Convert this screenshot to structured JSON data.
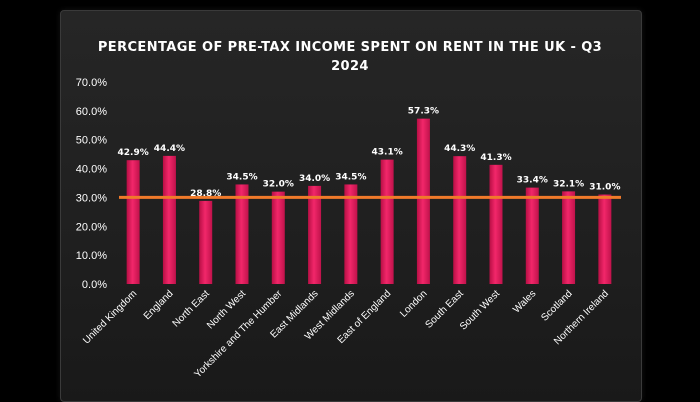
{
  "chart_data": {
    "type": "bar",
    "title": "PERCENTAGE OF PRE-TAX INCOME SPENT ON RENT IN THE UK - Q3 2024",
    "categories": [
      "United Kingdom",
      "England",
      "North East",
      "North West",
      "Yorkshire and The Humber",
      "East Midlands",
      "West Midlands",
      "East of England",
      "London",
      "South East",
      "South West",
      "Wales",
      "Scotland",
      "Northern Ireland"
    ],
    "values": [
      42.9,
      44.4,
      28.8,
      34.5,
      32.0,
      34.0,
      34.5,
      43.1,
      57.3,
      44.3,
      41.3,
      33.4,
      32.1,
      31.0
    ],
    "data_labels": [
      "42.9%",
      "44.4%",
      "28.8%",
      "34.5%",
      "32.0%",
      "34.0%",
      "34.5%",
      "43.1%",
      "57.3%",
      "44.3%",
      "41.3%",
      "33.4%",
      "32.1%",
      "31.0%"
    ],
    "y_ticks": [
      "0.0%",
      "10.0%",
      "20.0%",
      "30.0%",
      "40.0%",
      "50.0%",
      "60.0%",
      "70.0%"
    ],
    "ylim": [
      0,
      70
    ],
    "reference_line": 30,
    "grid": false,
    "legend": "none",
    "colors": {
      "bar": "#e8195a",
      "reference_line": "#f07a2a",
      "background": "#1f1f1f",
      "text": "#ffffff"
    }
  }
}
